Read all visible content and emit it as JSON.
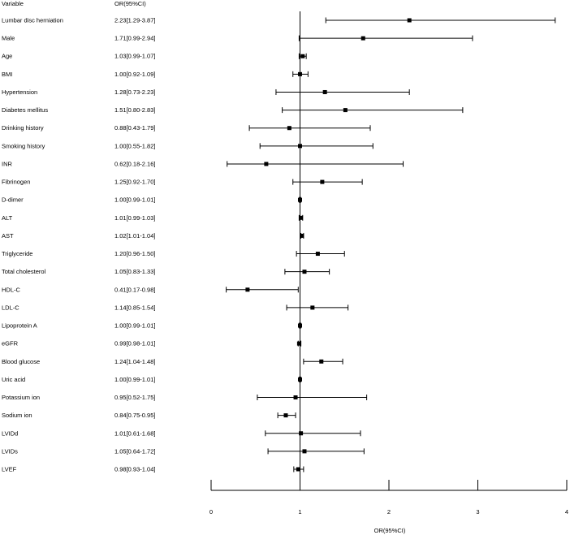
{
  "chart_data": {
    "type": "forest",
    "headers": {
      "variable": "Variable",
      "estimate": "OR(95%CI)"
    },
    "xlabel": "OR(95%CI)",
    "xlim": [
      0,
      4
    ],
    "xticks": [
      0,
      1,
      2,
      3,
      4
    ],
    "reference_line": 1,
    "rows": [
      {
        "variable": "Lumbar disc herniation",
        "label": "2.23[1.29-3.87]",
        "or": 2.23,
        "lower": 1.29,
        "upper": 3.87
      },
      {
        "variable": "Male",
        "label": "1.71[0.99-2.94]",
        "or": 1.71,
        "lower": 0.99,
        "upper": 2.94
      },
      {
        "variable": "Age",
        "label": "1.03[0.99-1.07]",
        "or": 1.03,
        "lower": 0.99,
        "upper": 1.07
      },
      {
        "variable": "BMI",
        "label": "1.00[0.92-1.09]",
        "or": 1.0,
        "lower": 0.92,
        "upper": 1.09
      },
      {
        "variable": "Hypertension",
        "label": "1.28[0.73-2.23]",
        "or": 1.28,
        "lower": 0.73,
        "upper": 2.23
      },
      {
        "variable": "Diabetes mellitus",
        "label": "1.51[0.80-2.83]",
        "or": 1.51,
        "lower": 0.8,
        "upper": 2.83
      },
      {
        "variable": "Drinking history",
        "label": "0.88[0.43-1.79]",
        "or": 0.88,
        "lower": 0.43,
        "upper": 1.79
      },
      {
        "variable": "Smoking history",
        "label": "1.00[0.55-1.82]",
        "or": 1.0,
        "lower": 0.55,
        "upper": 1.82
      },
      {
        "variable": "INR",
        "label": "0.62[0.18-2.16]",
        "or": 0.62,
        "lower": 0.18,
        "upper": 2.16
      },
      {
        "variable": "Fibrinogen",
        "label": "1.25[0.92-1.70]",
        "or": 1.25,
        "lower": 0.92,
        "upper": 1.7
      },
      {
        "variable": "D-dimer",
        "label": "1.00[0.99-1.01]",
        "or": 1.0,
        "lower": 0.99,
        "upper": 1.01
      },
      {
        "variable": "ALT",
        "label": "1.01[0.99-1.03]",
        "or": 1.01,
        "lower": 0.99,
        "upper": 1.03
      },
      {
        "variable": "AST",
        "label": "1.02[1.01-1.04]",
        "or": 1.02,
        "lower": 1.01,
        "upper": 1.04
      },
      {
        "variable": "Triglyceride",
        "label": "1.20[0.96-1.50]",
        "or": 1.2,
        "lower": 0.96,
        "upper": 1.5
      },
      {
        "variable": "Total cholesterol",
        "label": "1.05[0.83-1.33]",
        "or": 1.05,
        "lower": 0.83,
        "upper": 1.33
      },
      {
        "variable": "HDL-C",
        "label": "0.41[0.17-0.98]",
        "or": 0.41,
        "lower": 0.17,
        "upper": 0.98
      },
      {
        "variable": "LDL-C",
        "label": "1.14[0.85-1.54]",
        "or": 1.14,
        "lower": 0.85,
        "upper": 1.54
      },
      {
        "variable": "Lipoprotein A",
        "label": "1.00[0.99-1.01]",
        "or": 1.0,
        "lower": 0.99,
        "upper": 1.01
      },
      {
        "variable": "eGFR",
        "label": "0.99[0.98-1.01]",
        "or": 0.99,
        "lower": 0.98,
        "upper": 1.01
      },
      {
        "variable": "Blood glucose",
        "label": "1.24[1.04-1.48]",
        "or": 1.24,
        "lower": 1.04,
        "upper": 1.48
      },
      {
        "variable": "Uric acid",
        "label": "1.00[0.99-1.01]",
        "or": 1.0,
        "lower": 0.99,
        "upper": 1.01
      },
      {
        "variable": "Potassium ion",
        "label": "0.95[0.52-1.75]",
        "or": 0.95,
        "lower": 0.52,
        "upper": 1.75
      },
      {
        "variable": "Sodium ion",
        "label": "0.84[0.75-0.95]",
        "or": 0.84,
        "lower": 0.75,
        "upper": 0.95
      },
      {
        "variable": "LVIDd",
        "label": "1.01[0.61-1.68]",
        "or": 1.01,
        "lower": 0.61,
        "upper": 1.68
      },
      {
        "variable": "LVIDs",
        "label": "1.05[0.64-1.72]",
        "or": 1.05,
        "lower": 0.64,
        "upper": 1.72
      },
      {
        "variable": "LVEF",
        "label": "0.98[0.93-1.04]",
        "or": 0.98,
        "lower": 0.93,
        "upper": 1.04
      }
    ]
  }
}
